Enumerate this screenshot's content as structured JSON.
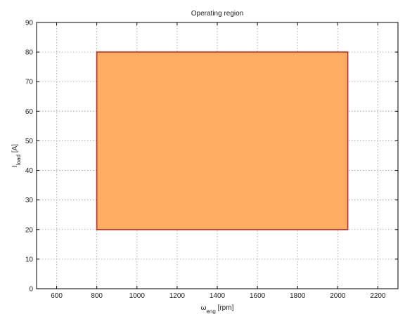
{
  "chart_data": {
    "type": "area",
    "title": "Operating region",
    "xlabel": {
      "symbol": "ω",
      "subscript": "eng",
      "unit": " [rpm]"
    },
    "ylabel": {
      "symbol": "I",
      "subscript": "load",
      "unit": " [A]"
    },
    "xlim": [
      500,
      2300
    ],
    "ylim": [
      0,
      90
    ],
    "xticks": [
      600,
      800,
      1000,
      1200,
      1400,
      1600,
      1800,
      2000,
      2200
    ],
    "yticks": [
      0,
      10,
      20,
      30,
      40,
      50,
      60,
      70,
      80,
      90
    ],
    "grid": true,
    "legend": "none",
    "region": {
      "x": [
        800,
        2050,
        2050,
        800
      ],
      "y": [
        20,
        20,
        80,
        80
      ],
      "fill_color": "#FFAD62",
      "edge_color": "#C0302A"
    }
  }
}
